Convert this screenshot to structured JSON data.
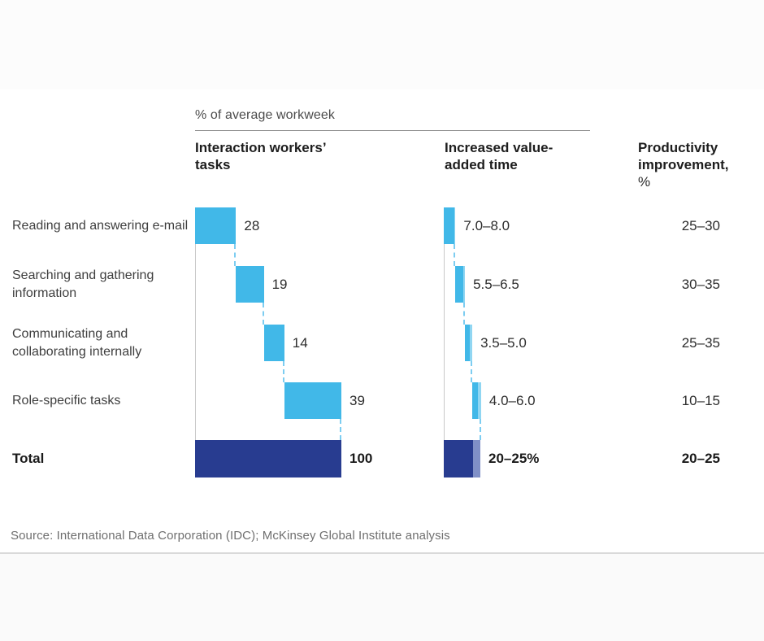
{
  "page": {
    "title": "% of average workweek",
    "source": "Source: International Data Corporation (IDC); McKinsey Global Institute analysis"
  },
  "headers": {
    "col1": "Interaction workers’ tasks",
    "col2": "Increased value-added time",
    "col3_main": "Productivity improvement,",
    "col3_unit": "%"
  },
  "chart_data": {
    "type": "waterfall",
    "title": "% of average workweek",
    "unit": "% of average workweek",
    "x_max": 100,
    "grid": false,
    "categories": [
      "Reading and answering e-mail",
      "Searching and gathering information",
      "Communicating and collaborating internally",
      "Role-specific tasks"
    ],
    "total_label": "Total",
    "series": [
      {
        "name": "Interaction workers’ tasks",
        "type": "waterfall",
        "values": [
          28,
          19,
          14,
          39
        ],
        "value_labels": [
          "28",
          "19",
          "14",
          "39"
        ],
        "total": 100,
        "total_value_label": "100"
      },
      {
        "name": "Increased value-added time",
        "type": "waterfall-range",
        "ranges": [
          [
            7.0,
            8.0
          ],
          [
            5.5,
            6.5
          ],
          [
            3.5,
            5.0
          ],
          [
            4.0,
            6.0
          ]
        ],
        "value_labels": [
          "7.0–8.0",
          "5.5–6.5",
          "3.5–5.0",
          "4.0–6.0"
        ],
        "total_range": [
          20,
          25
        ],
        "total_value_label": "20–25%"
      },
      {
        "name": "Productivity improvement, %",
        "type": "text-column",
        "value_labels": [
          "25–30",
          "30–35",
          "25–35",
          "10–15"
        ],
        "total_value_label": "20–25"
      }
    ]
  },
  "colors": {
    "task_bar": "#41b8e8",
    "range_tip": "#90d6f2",
    "total_bar": "#283c90",
    "total_tip": "#8090c7",
    "connector": "#7dcdf1",
    "axis": "#c9c9c9"
  }
}
